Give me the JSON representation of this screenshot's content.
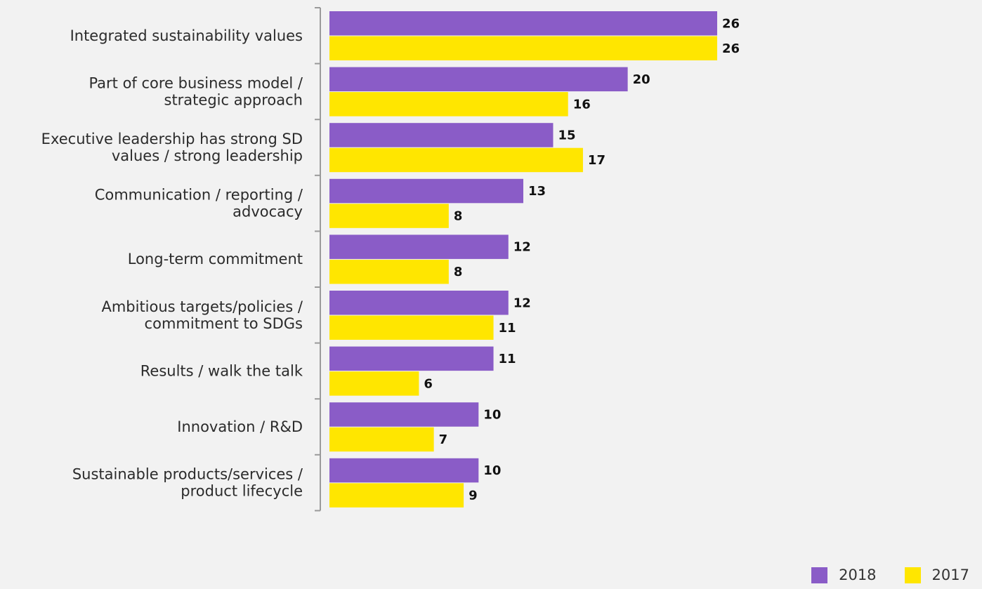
{
  "chart_data": {
    "type": "bar",
    "orientation": "horizontal",
    "categories": [
      [
        "Integrated sustainability values"
      ],
      [
        "Part of core business model /",
        "strategic approach"
      ],
      [
        "Executive leadership has strong SD",
        "values / strong leadership"
      ],
      [
        "Communication / reporting /",
        "advocacy"
      ],
      [
        "Long-term commitment"
      ],
      [
        "Ambitious targets/policies /",
        "commitment to SDGs"
      ],
      [
        "Results / walk the talk"
      ],
      [
        "Innovation / R&D"
      ],
      [
        "Sustainable products/services /",
        "product lifecycle"
      ]
    ],
    "series": [
      {
        "name": "2018",
        "color": "#8a5cc7",
        "values": [
          26,
          20,
          15,
          13,
          12,
          12,
          11,
          10,
          10
        ]
      },
      {
        "name": "2017",
        "color": "#ffe600",
        "values": [
          26,
          16,
          17,
          8,
          8,
          11,
          6,
          7,
          9
        ]
      }
    ],
    "xlim": [
      0,
      26
    ],
    "grid": false,
    "legend": "bottom-right",
    "title": "",
    "xlabel": "",
    "ylabel": ""
  }
}
